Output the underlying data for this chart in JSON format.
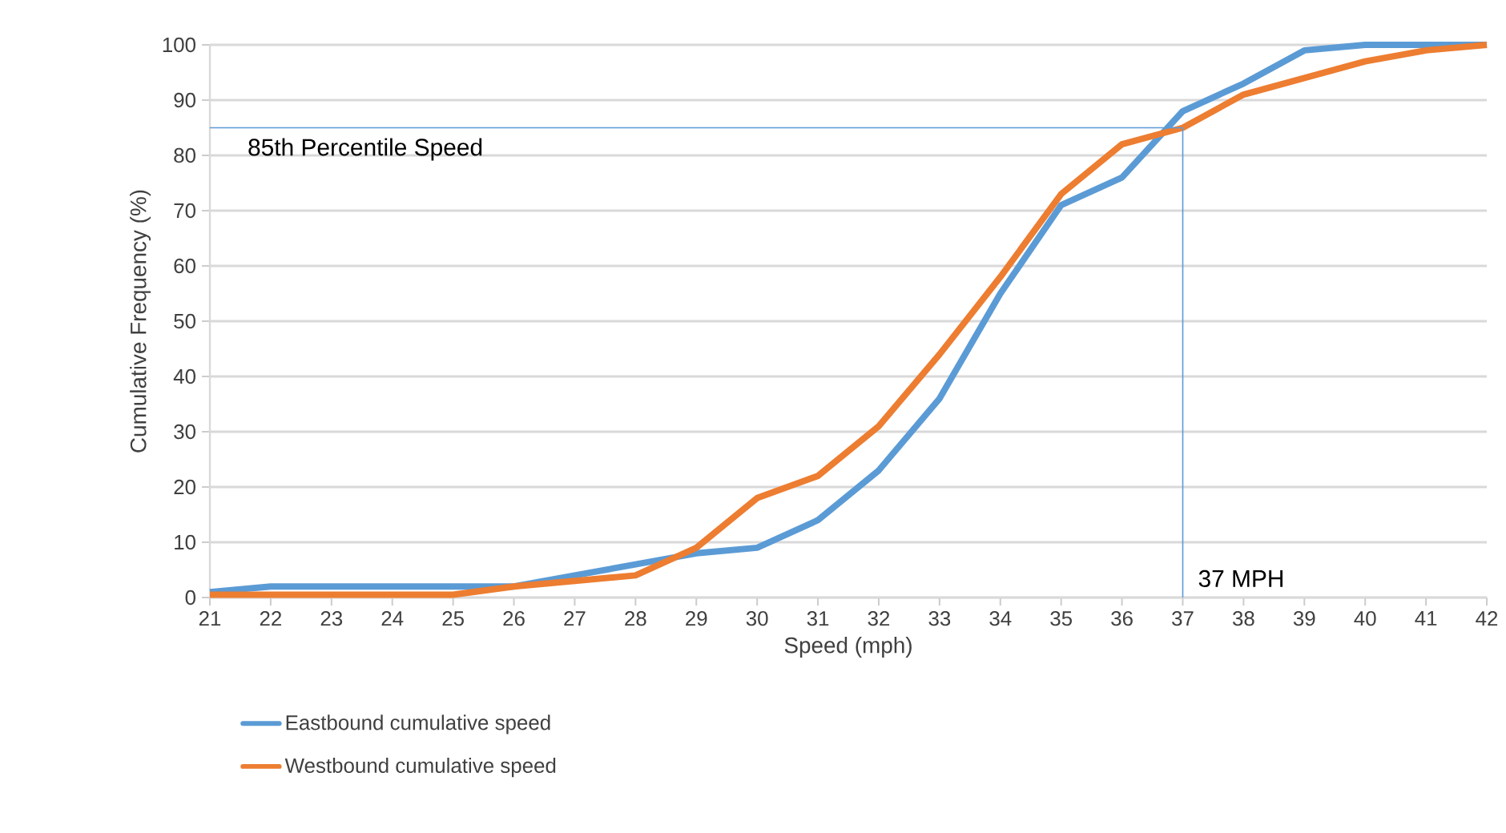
{
  "chart_data": {
    "type": "line",
    "xlabel": "Speed (mph)",
    "ylabel": "Cumulative Frequency (%)",
    "x": [
      21,
      22,
      23,
      24,
      25,
      26,
      27,
      28,
      29,
      30,
      31,
      32,
      33,
      34,
      35,
      36,
      37,
      38,
      39,
      40,
      41,
      42
    ],
    "series": [
      {
        "name": "Eastbound cumulative speed",
        "color": "#5b9bd5",
        "values": [
          1,
          2,
          2,
          2,
          2,
          2,
          4,
          6,
          8,
          9,
          14,
          23,
          36,
          55,
          71,
          76,
          88,
          93,
          99,
          100,
          100,
          100
        ]
      },
      {
        "name": "Westbound cumulative speed",
        "color": "#ed7d31",
        "values": [
          0.5,
          0.5,
          0.5,
          0.5,
          0.5,
          2,
          3,
          4,
          9,
          18,
          22,
          31,
          44,
          58,
          73,
          82,
          85,
          91,
          94,
          97,
          99,
          100
        ]
      }
    ],
    "xlim": [
      21,
      42
    ],
    "xticks": [
      21,
      22,
      23,
      24,
      25,
      26,
      27,
      28,
      29,
      30,
      31,
      32,
      33,
      34,
      35,
      36,
      37,
      38,
      39,
      40,
      41,
      42
    ],
    "ylim": [
      0,
      100
    ],
    "yticks": [
      0,
      10,
      20,
      30,
      40,
      50,
      60,
      70,
      80,
      90,
      100
    ],
    "ref_lines": [
      {
        "axis": "y",
        "value": 85,
        "label": "85th Percentile Speed",
        "color": "#5b9bd5"
      },
      {
        "axis": "x",
        "value": 37,
        "label": "37 MPH",
        "color": "#5b9bd5"
      }
    ],
    "grid": "y",
    "legend": "bottom",
    "marker": "none",
    "line_style": "solid"
  }
}
